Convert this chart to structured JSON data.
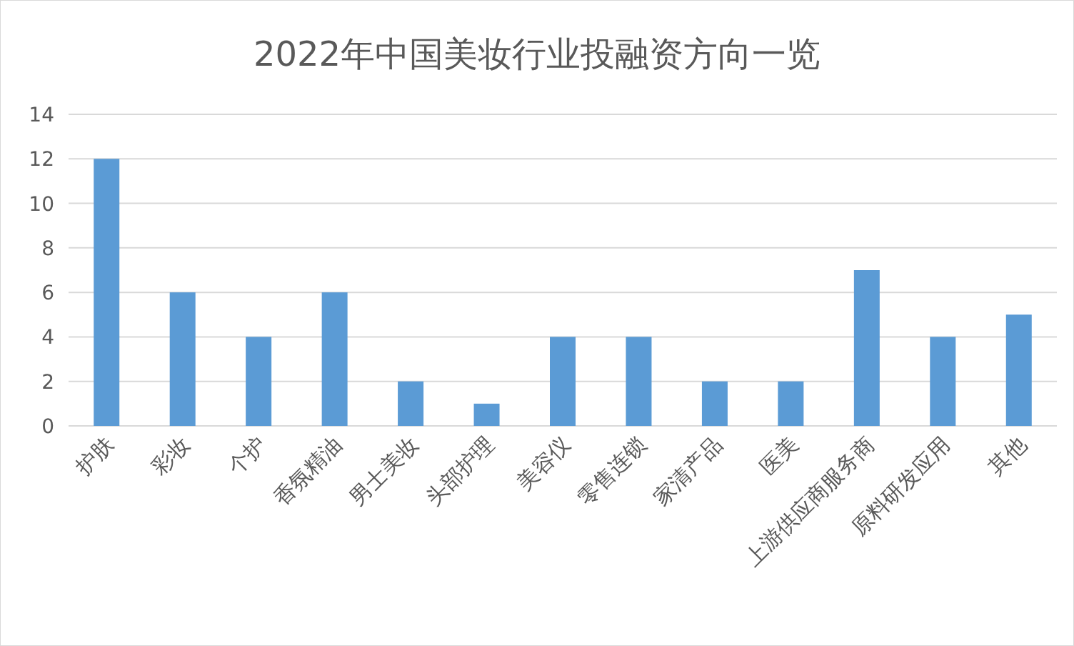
{
  "chart_data": {
    "type": "bar",
    "title": "2022年中国美妆行业投融资方向一览",
    "categories": [
      "护肤",
      "彩妆",
      "个护",
      "香氛精油",
      "男士美妆",
      "头部护理",
      "美容仪",
      "零售连锁",
      "家清产品",
      "医美",
      "上游供应商服务商",
      "原料研发应用",
      "其他"
    ],
    "values": [
      12,
      6,
      4,
      6,
      2,
      1,
      4,
      4,
      2,
      2,
      7,
      4,
      5
    ],
    "color": "#5b9bd5",
    "ylim": [
      0,
      14
    ],
    "yticks": [
      0,
      2,
      4,
      6,
      8,
      10,
      12,
      14
    ],
    "grid": "y"
  }
}
